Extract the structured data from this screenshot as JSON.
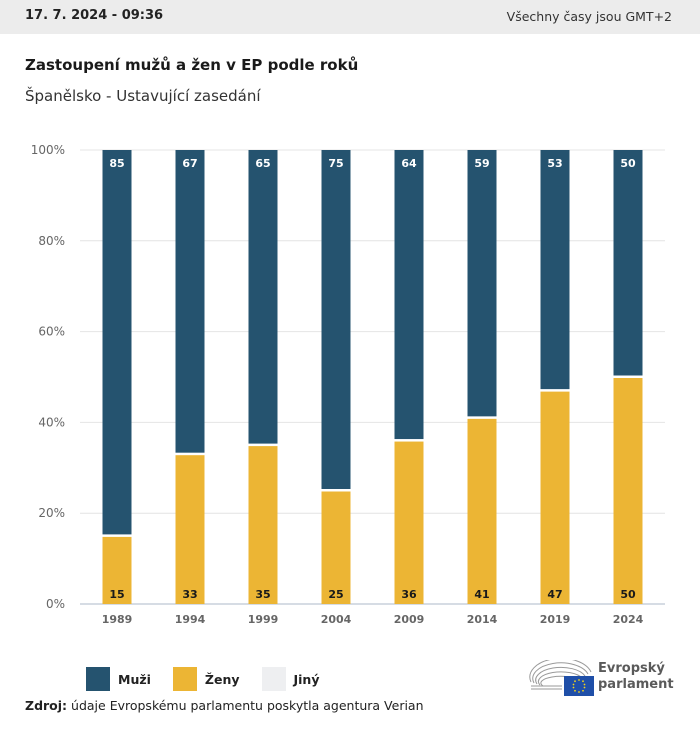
{
  "header": {
    "timestamp": "17. 7. 2024 - 09:36",
    "timezone_note": "Všechny časy jsou GMT+2"
  },
  "chart_data": {
    "type": "bar",
    "stacked": true,
    "title": "Zastoupení mužů a žen v EP podle roků",
    "subtitle": "Španělsko - Ustavující zasedání",
    "xlabel": "",
    "ylabel": "",
    "ylim": [
      0,
      100
    ],
    "y_ticks": [
      "0%",
      "20%",
      "40%",
      "60%",
      "80%",
      "100%"
    ],
    "y_tick_values": [
      0,
      20,
      40,
      60,
      80,
      100
    ],
    "grid": true,
    "categories": [
      "1989",
      "1994",
      "1999",
      "2004",
      "2009",
      "2014",
      "2019",
      "2024"
    ],
    "series": [
      {
        "name": "Ženy",
        "color": "#ecb534",
        "label_color": "#1a1a1a",
        "values": [
          15,
          33,
          35,
          25,
          36,
          41,
          47,
          50
        ]
      },
      {
        "name": "Muži",
        "color": "#25536f",
        "label_color": "#ffffff",
        "values": [
          85,
          67,
          65,
          75,
          64,
          59,
          53,
          50
        ]
      },
      {
        "name": "Jiný",
        "color": "#eeeff1",
        "label_color": "#1a1a1a",
        "values": [
          0,
          0,
          0,
          0,
          0,
          0,
          0,
          0
        ]
      }
    ],
    "legend": {
      "position": "bottom-left",
      "entries": [
        {
          "name": "Muži",
          "color": "#25536f"
        },
        {
          "name": "Ženy",
          "color": "#ecb534"
        },
        {
          "name": "Jiný",
          "color": "#eeeff1"
        }
      ]
    }
  },
  "footer": {
    "source_label": "Zdroj:",
    "source_text": " údaje Evropskému parlamentu poskytla agentura Verian",
    "logo_line1": "Evropský",
    "logo_line2": "parlament"
  }
}
